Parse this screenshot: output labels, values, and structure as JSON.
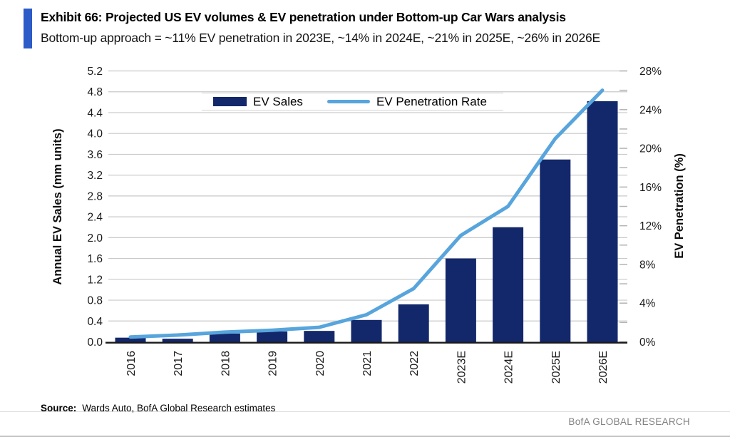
{
  "header": {
    "exhibit_title": "Exhibit 66: Projected US EV volumes & EV penetration under Bottom-up Car Wars analysis",
    "subtitle": "Bottom-up approach = ~11% EV penetration in 2023E, ~14% in 2024E, ~21% in 2025E, ~26% in 2026E",
    "accent_color": "#2d5bc8"
  },
  "chart_data": {
    "type": "bar",
    "subtype": "combo-bar-line-dual-axis",
    "title": "",
    "categories": [
      "2016",
      "2017",
      "2018",
      "2019",
      "2020",
      "2021",
      "2022",
      "2023E",
      "2024E",
      "2025E",
      "2026E"
    ],
    "series": [
      {
        "name": "EV Sales",
        "type": "bar",
        "axis": "left",
        "color": "#13276b",
        "values": [
          0.08,
          0.06,
          0.16,
          0.2,
          0.21,
          0.42,
          0.72,
          1.6,
          2.2,
          3.5,
          4.62
        ]
      },
      {
        "name": "EV Penetration Rate",
        "type": "line",
        "axis": "right",
        "color": "#57a5dc",
        "values": [
          0.5,
          0.7,
          1.0,
          1.2,
          1.5,
          2.8,
          5.5,
          11,
          14,
          21,
          26
        ]
      }
    ],
    "left_axis": {
      "label": "Annual EV Sales (mm units)",
      "min": 0,
      "max": 5.2,
      "tick_step": 0.4
    },
    "right_axis": {
      "label": "EV Penetration (%)",
      "min": 0,
      "max": 28,
      "tick_step": 4,
      "minor_tick_step": 2,
      "tick_suffix": "%"
    },
    "grid": true,
    "legend_position": "top-center",
    "colors": {
      "grid": "#c9c9c9",
      "axis_line": "#1a1a1a",
      "minor_tick": "#b3b3b3"
    }
  },
  "footer": {
    "source_label": "Source:",
    "source_text": "Wards Auto, BofA Global Research estimates",
    "brand": "BofA GLOBAL RESEARCH"
  }
}
